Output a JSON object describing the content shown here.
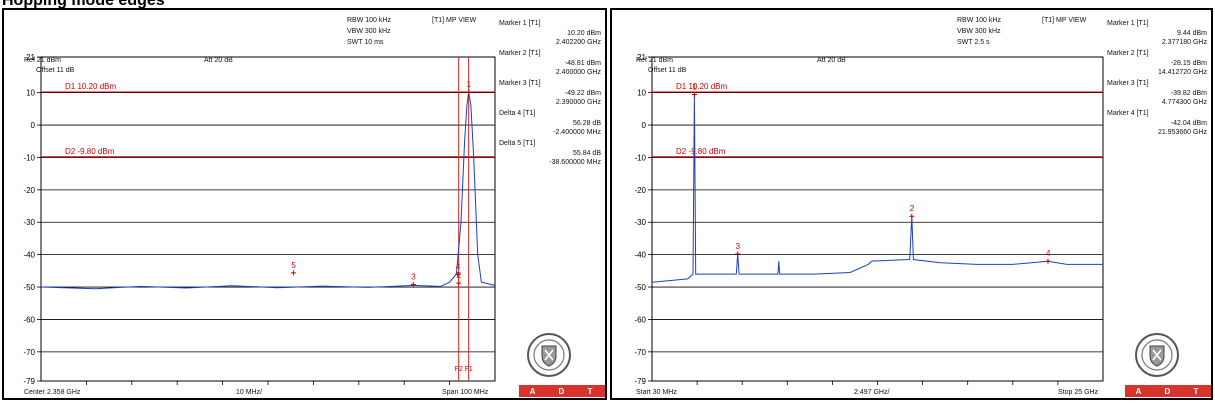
{
  "page": {
    "heading": "Hopping mode edges"
  },
  "charts": [
    {
      "header": {
        "ref": "Ref 21 dBm",
        "att": "Att 20 dB",
        "rbw": "RBW 100 kHz",
        "vbw": "VBW 300 kHz",
        "swt": "SWT 10 ms",
        "view": "[T1] MP VIEW",
        "offset": "Offset 11 dB"
      },
      "footer": {
        "start": "Center 2.358 GHz",
        "div": "10 MHz/",
        "stop": "Span 100 MHz"
      },
      "markers": [
        {
          "label": "Marker 1 [T1]",
          "level": "10.20 dBm",
          "freq": "2.402200 GHz"
        },
        {
          "label": "Marker 2 [T1]",
          "level": "-48.81 dBm",
          "freq": "2.400000 GHz"
        },
        {
          "label": "Marker 3 [T1]",
          "level": "-49.22 dBm",
          "freq": "2.390000 GHz"
        },
        {
          "label": "Delta 4 [T1]",
          "level": "56.28 dB",
          "freq": "-2.400000 MHz"
        },
        {
          "label": "Delta 5 [T1]",
          "level": "55.84 dB",
          "freq": "-38.600000 MHz"
        }
      ],
      "d1_label": "D1 10.20 dBm",
      "d2_label": "D2 -9.80 dBm",
      "f_labels": [
        "F2",
        "F1"
      ]
    },
    {
      "header": {
        "ref": "Ref 21 dBm",
        "att": "Att 20 dB",
        "rbw": "RBW 100 kHz",
        "vbw": "VBW 300 kHz",
        "swt": "SWT 2.5 s",
        "view": "[T1] MP VIEW",
        "offset": "Offset 11 dB"
      },
      "footer": {
        "start": "Start 30 MHz",
        "div": "2.497 GHz/",
        "stop": "Stop 25 GHz"
      },
      "markers": [
        {
          "label": "Marker 1 [T1]",
          "level": "9.44 dBm",
          "freq": "2.377180 GHz"
        },
        {
          "label": "Marker 2 [T1]",
          "level": "-28.15 dBm",
          "freq": "14.412720 GHz"
        },
        {
          "label": "Marker 3 [T1]",
          "level": "-39.82 dBm",
          "freq": "4.774300 GHz"
        },
        {
          "label": "Marker 4 [T1]",
          "level": "-42.04 dBm",
          "freq": "21.953660 GHz"
        }
      ],
      "d1_label": "D1 10.20 dBm",
      "d2_label": "D2 -9.80 dBm"
    }
  ],
  "adt_letters": [
    "A",
    "D",
    "T"
  ],
  "chart_data": [
    {
      "type": "line",
      "xlabel": "",
      "ylabel": "",
      "xlim": [
        2308,
        2408
      ],
      "ylim": [
        -79,
        21
      ],
      "yticks": [
        21,
        10,
        0,
        -10,
        -20,
        -30,
        -40,
        -50,
        -60,
        -70,
        -79
      ],
      "xunit": "MHz",
      "yunit": "dBm",
      "display_lines": [
        {
          "name": "D1",
          "value": 10.2
        },
        {
          "name": "D2",
          "value": -9.8
        }
      ],
      "vertical_lines": [
        {
          "name": "F2",
          "x": 2400
        },
        {
          "name": "F1",
          "x": 2402.2
        }
      ],
      "markers": [
        {
          "label": "1",
          "x": 2402.2,
          "y": 10.2
        },
        {
          "label": "2",
          "x": 2400.0,
          "y": -48.81
        },
        {
          "label": "3",
          "x": 2390.0,
          "y": -49.22
        },
        {
          "label": "4",
          "x": 2399.8,
          "y": -46.08
        },
        {
          "label": "5",
          "x": 2363.6,
          "y": -45.64
        }
      ],
      "series": [
        {
          "x": [
            2308,
            2320,
            2330,
            2340,
            2350,
            2360,
            2370,
            2380,
            2390,
            2396,
            2398,
            2399.5,
            2400.5,
            2401.3,
            2401.8,
            2402.2,
            2402.7,
            2403.3,
            2404.2,
            2405,
            2408
          ],
          "y": [
            -50,
            -50.5,
            -49.8,
            -50.3,
            -49.6,
            -50.2,
            -49.7,
            -50.1,
            -49.5,
            -49.8,
            -48.5,
            -46,
            -30,
            -5,
            6,
            10.2,
            6,
            -10,
            -40,
            -48.5,
            -49.5
          ]
        }
      ]
    },
    {
      "type": "line",
      "xlabel": "",
      "ylabel": "",
      "xlim": [
        0.03,
        25
      ],
      "ylim": [
        -79,
        21
      ],
      "yticks": [
        21,
        10,
        0,
        -10,
        -20,
        -30,
        -40,
        -50,
        -60,
        -70,
        -79
      ],
      "xunit": "GHz",
      "yunit": "dBm",
      "display_lines": [
        {
          "name": "D1",
          "value": 10.2
        },
        {
          "name": "D2",
          "value": -9.8
        }
      ],
      "markers": [
        {
          "label": "1",
          "x": 2.377,
          "y": 9.44
        },
        {
          "label": "2",
          "x": 14.413,
          "y": -28.15
        },
        {
          "label": "3",
          "x": 4.774,
          "y": -39.82
        },
        {
          "label": "4",
          "x": 21.954,
          "y": -42.04
        }
      ],
      "series": [
        {
          "x": [
            0.03,
            1,
            2,
            2.3,
            2.377,
            2.45,
            3,
            4.7,
            4.774,
            4.85,
            6,
            7,
            7.05,
            7.1,
            9,
            11,
            12,
            12.2,
            14.3,
            14.413,
            14.5,
            16,
            18,
            20,
            21.954,
            23,
            25
          ],
          "y": [
            -48.5,
            -48,
            -47.5,
            -46,
            9.44,
            -46,
            -46,
            -46,
            -39.82,
            -46,
            -46,
            -46,
            -42,
            -46,
            -46,
            -45.5,
            -43,
            -42,
            -41.5,
            -28.15,
            -41.5,
            -42.5,
            -43,
            -43,
            -42.04,
            -43,
            -43
          ]
        }
      ]
    }
  ]
}
